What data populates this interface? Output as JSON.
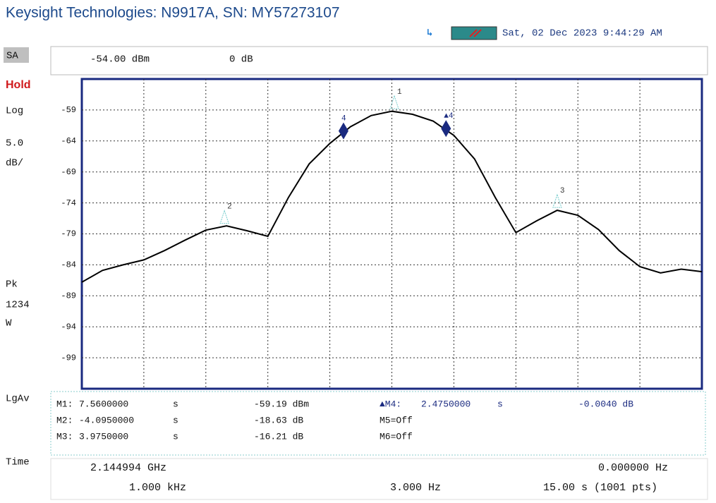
{
  "header": {
    "title": "Keysight Technologies: N9917A, SN: MY57273107",
    "datetime": "Sat, 02 Dec 2023 9:44:29 AM"
  },
  "sidebar": [
    "SA",
    "Hold",
    "Log",
    "5.0",
    "dB/",
    "Pk",
    "1234",
    "W",
    "LgAv",
    "Time"
  ],
  "top_bar": [
    "-54.00 dBm",
    "0 dB"
  ],
  "chart_data": {
    "type": "line",
    "color": "#000000",
    "x": [
      0,
      0.5,
      1,
      1.5,
      2,
      2.5,
      3,
      3.5,
      4,
      4.5,
      5,
      5.5,
      6,
      6.5,
      7,
      7.5,
      8,
      8.5,
      9,
      9.5,
      10,
      10.5,
      11,
      11.5,
      12,
      12.5,
      13,
      13.5,
      14,
      14.5,
      15
    ],
    "values": [
      -86.8,
      -84.9,
      -84.0,
      -83.2,
      -81.7,
      -80.0,
      -78.4,
      -77.7,
      -78.5,
      -79.4,
      -73.1,
      -67.7,
      -64.4,
      -61.7,
      -59.9,
      -59.2,
      -59.7,
      -60.8,
      -63.1,
      -66.9,
      -73.1,
      -78.8,
      -76.9,
      -75.2,
      -76.0,
      -78.3,
      -81.7,
      -84.3,
      -85.3,
      -84.7,
      -85.1
    ],
    "xlim": [
      0,
      15
    ],
    "xticks": [
      1.5,
      3,
      4.5,
      6,
      7.5,
      9,
      10.5,
      12,
      13.5
    ],
    "ylim": [
      -104,
      -54
    ],
    "yticks": [
      -59,
      -64,
      -69,
      -74,
      -79,
      -84,
      -89,
      -94,
      -99
    ],
    "grid": true,
    "markers": [
      {
        "label": "1",
        "x": 7.56
      },
      {
        "label": "2",
        "x": 3.45
      },
      {
        "label": "3",
        "x": 11.5
      },
      {
        "label": "4",
        "x": 6.33
      },
      {
        "label": "▲4",
        "x": 8.81
      }
    ]
  },
  "marker_table": {
    "rows": [
      [
        "M1:",
        "7.5600000",
        "s",
        "-59.19 dBm",
        "▲M4:",
        "2.4750000",
        "s",
        "-0.0040 dB"
      ],
      [
        "M2:",
        "-4.0950000",
        "s",
        "-18.63 dB",
        "M5=Off"
      ],
      [
        "M3:",
        "3.9750000",
        "s",
        "-16.21 dB",
        "M6=Off"
      ]
    ]
  },
  "footer": {
    "rows": [
      [
        "2.144994 GHz",
        "0.000000 Hz"
      ],
      [
        "1.000 kHz",
        "3.000 Hz",
        "15.00 s (1001 pts)"
      ]
    ]
  }
}
